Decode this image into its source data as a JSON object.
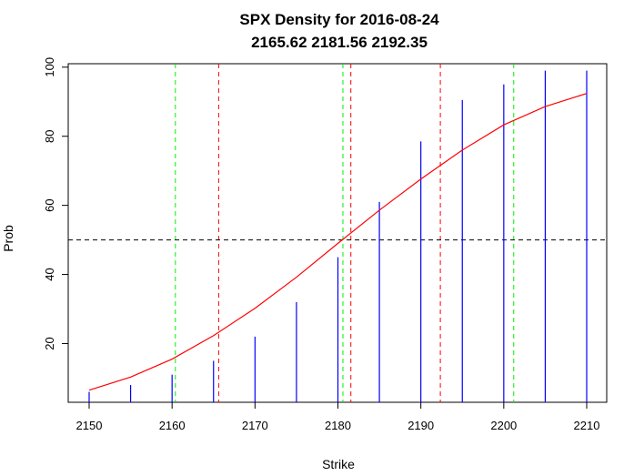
{
  "chart_data": {
    "type": "line",
    "title": "SPX Density for 2016-08-24",
    "subtitle": "2165.62 2181.56 2192.35",
    "xlabel": "Strike",
    "ylabel": "Prob",
    "xlim": [
      2150,
      2210
    ],
    "ylim": [
      3,
      101
    ],
    "x_ticks": [
      2150,
      2160,
      2170,
      2180,
      2190,
      2200,
      2210
    ],
    "y_ticks": [
      20,
      40,
      60,
      80,
      100
    ],
    "bars": {
      "color": "#0000ff",
      "x": [
        2150,
        2155,
        2160,
        2165,
        2170,
        2175,
        2180,
        2185,
        2190,
        2195,
        2200,
        2205,
        2210
      ],
      "values": [
        6,
        8,
        11,
        15,
        22,
        32,
        45,
        61,
        78.5,
        90.5,
        95,
        99,
        99
      ]
    },
    "curve": {
      "color": "#ff0000",
      "x": [
        2150,
        2155,
        2160,
        2165,
        2170,
        2175,
        2180,
        2185,
        2190,
        2195,
        2200,
        2205,
        2210
      ],
      "values": [
        6.5,
        10.3,
        15.5,
        22.3,
        30.2,
        39.2,
        49,
        58.6,
        67.6,
        76,
        83.3,
        88.6,
        92.4
      ]
    },
    "red_vlines": [
      2165.62,
      2181.56,
      2192.35
    ],
    "green_vlines": [
      2160.4,
      2180.6,
      2201.2
    ],
    "hline": {
      "y": 50,
      "color": "#000000"
    },
    "grid": false
  }
}
